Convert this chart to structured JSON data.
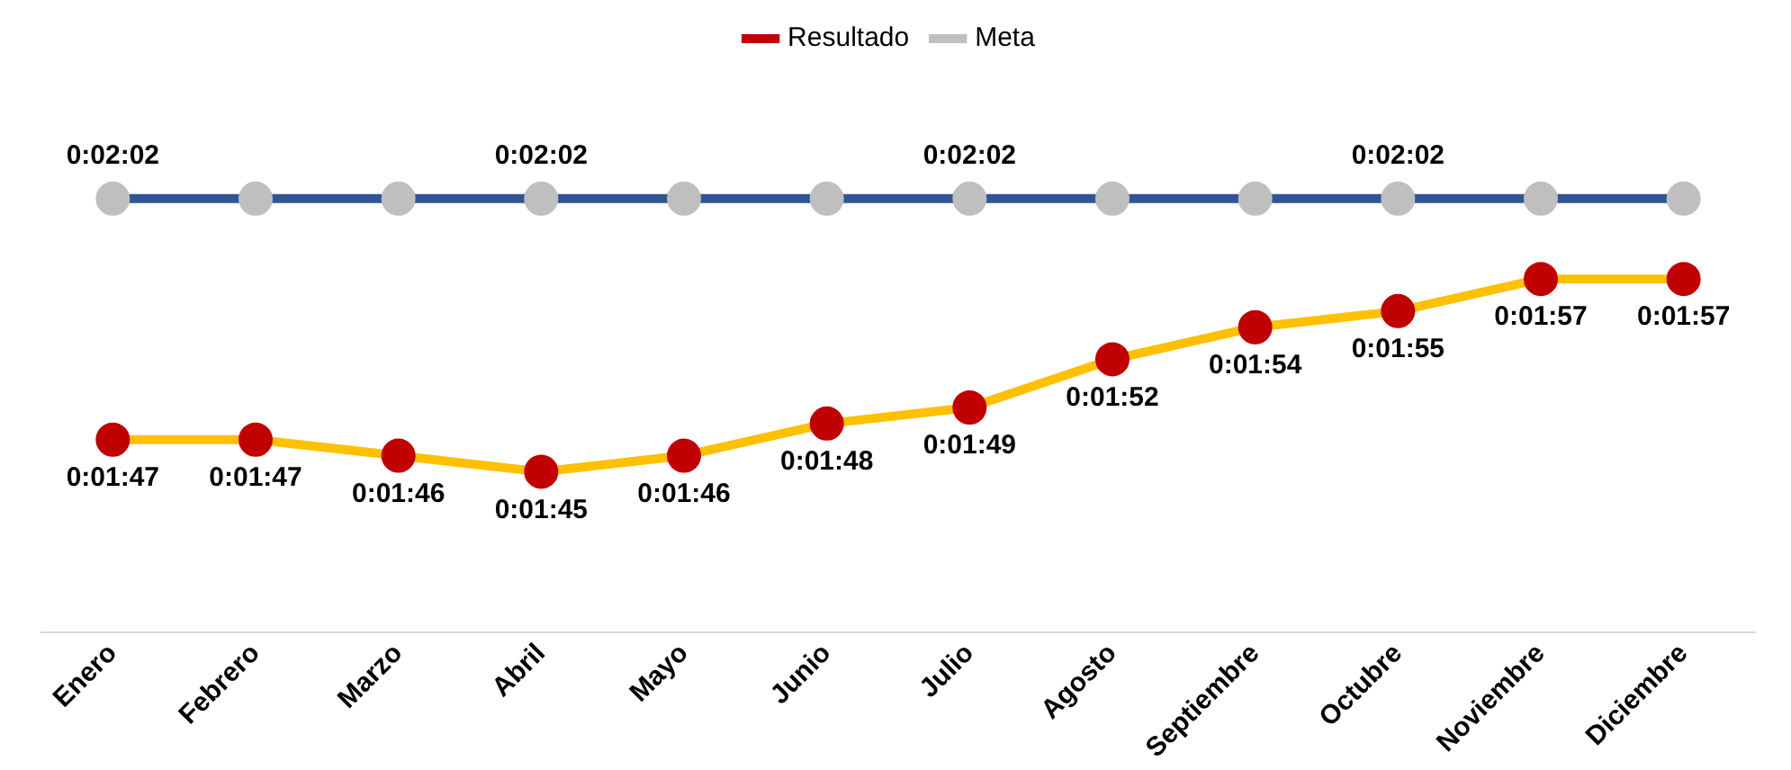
{
  "chart_data": {
    "type": "line",
    "categories": [
      "Enero",
      "Febrero",
      "Marzo",
      "Abril",
      "Mayo",
      "Junio",
      "Julio",
      "Agosto",
      "Septiembre",
      "Octubre",
      "Noviembre",
      "Diciembre"
    ],
    "series": [
      {
        "name": "Resultado",
        "color": "#ffc000",
        "values": [
          107,
          107,
          106,
          105,
          106,
          108,
          109,
          112,
          114,
          115,
          117,
          117
        ],
        "value_labels": [
          "0:01:47",
          "0:01:47",
          "0:01:46",
          "0:01:45",
          "0:01:46",
          "0:01:48",
          "0:01:49",
          "0:01:52",
          "0:01:54",
          "0:01:55",
          "0:01:57",
          "0:01:57"
        ]
      },
      {
        "name": "Meta",
        "color": "#2f5597",
        "values": [
          122,
          122,
          122,
          122,
          122,
          122,
          122,
          122,
          122,
          122,
          122,
          122
        ],
        "value_labels": [
          "0:02:02",
          null,
          null,
          "0:02:02",
          null,
          null,
          "0:02:02",
          null,
          null,
          "0:02:02",
          null,
          null
        ]
      }
    ],
    "relative": false,
    "legend": "top",
    "grid": false,
    "marker": "circle",
    "line_style": "solid"
  }
}
